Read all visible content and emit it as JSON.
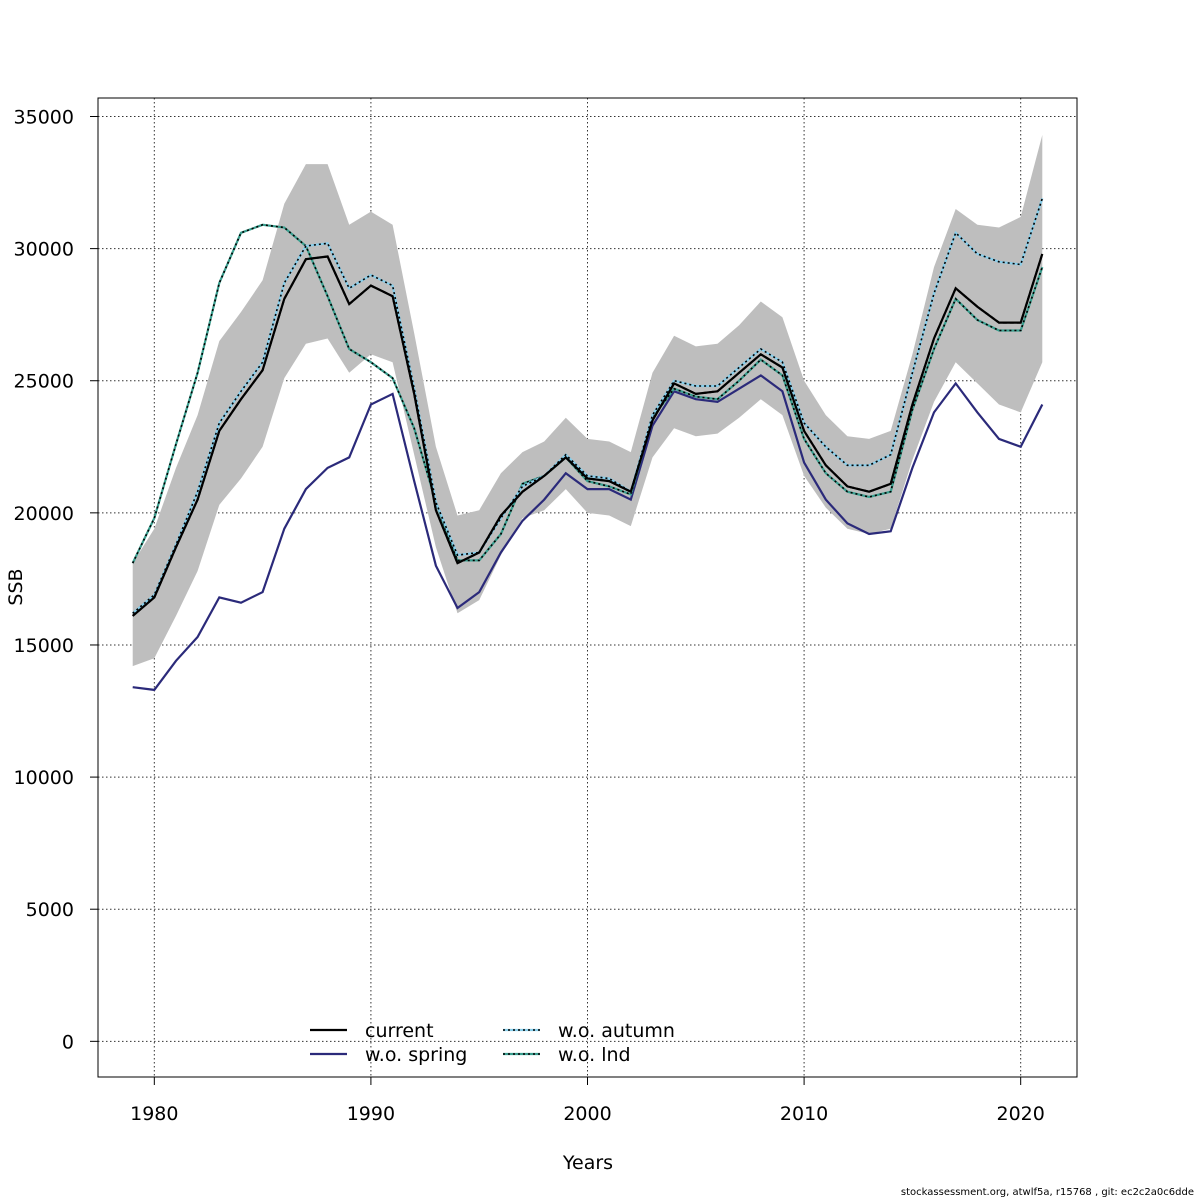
{
  "chart_data": {
    "type": "line",
    "title": "",
    "xlabel": "Years",
    "ylabel": "SSB",
    "xlim": [
      1977.4,
      2022.6
    ],
    "ylim": [
      -1350,
      35700
    ],
    "x_ticks": [
      1980,
      1990,
      2000,
      2010,
      2020
    ],
    "y_ticks": [
      0,
      5000,
      10000,
      15000,
      20000,
      25000,
      30000,
      35000
    ],
    "grid": true,
    "legend_position": "bottom-center",
    "x": [
      1979,
      1980,
      1981,
      1982,
      1983,
      1984,
      1985,
      1986,
      1987,
      1988,
      1989,
      1990,
      1991,
      1992,
      1993,
      1994,
      1995,
      1996,
      1997,
      1998,
      1999,
      2000,
      2001,
      2002,
      2003,
      2004,
      2005,
      2006,
      2007,
      2008,
      2009,
      2010,
      2011,
      2012,
      2013,
      2014,
      2015,
      2016,
      2017,
      2018,
      2019,
      2020,
      2021
    ],
    "confidence_band": {
      "color": "#bebebe",
      "lower": [
        14200,
        14500,
        16100,
        17800,
        20300,
        21300,
        22500,
        25100,
        26400,
        26600,
        25300,
        26000,
        25700,
        22200,
        18700,
        16200,
        16700,
        18400,
        19800,
        20100,
        20900,
        20000,
        19900,
        19500,
        22100,
        23200,
        22900,
        23000,
        23600,
        24300,
        23700,
        21400,
        20200,
        19400,
        19200,
        19400,
        22000,
        24200,
        25700,
        24900,
        24100,
        23800,
        25700
      ],
      "upper": [
        18100,
        19400,
        21700,
        23700,
        26500,
        27600,
        28800,
        31700,
        33200,
        33200,
        30900,
        31400,
        30900,
        26800,
        22500,
        19900,
        20100,
        21500,
        22300,
        22700,
        23600,
        22800,
        22700,
        22300,
        25300,
        26700,
        26300,
        26400,
        27100,
        28000,
        27400,
        25000,
        23700,
        22900,
        22800,
        23100,
        26000,
        29300,
        31500,
        30900,
        30800,
        31200,
        34300
      ]
    },
    "series": [
      {
        "name": "current",
        "color": "#000000",
        "dash": "solid",
        "values": [
          16100,
          16800,
          18700,
          20500,
          23100,
          24300,
          25400,
          28100,
          29600,
          29700,
          27900,
          28600,
          28200,
          24500,
          20100,
          18100,
          18500,
          19900,
          20800,
          21400,
          22100,
          21300,
          21200,
          20800,
          23500,
          24900,
          24500,
          24600,
          25300,
          26000,
          25500,
          23100,
          21800,
          21000,
          20800,
          21100,
          24100,
          26600,
          28500,
          27800,
          27200,
          27200,
          29800
        ]
      },
      {
        "name": "w.o. spring",
        "color": "#2b2a7a",
        "dash": "solid",
        "values": [
          13400,
          13300,
          14400,
          15300,
          16800,
          16600,
          17000,
          19400,
          20900,
          21700,
          22100,
          24100,
          24500,
          21200,
          18000,
          16400,
          17000,
          18500,
          19700,
          20500,
          21500,
          20900,
          20900,
          20500,
          23300,
          24600,
          24300,
          24200,
          24700,
          25200,
          24600,
          21900,
          20500,
          19600,
          19200,
          19300,
          21700,
          23800,
          24900,
          23800,
          22800,
          22500,
          24100
        ]
      },
      {
        "name": "w.o. autumn",
        "color": "#87ceeb",
        "dash": "dotted",
        "values": [
          16200,
          16900,
          18800,
          20800,
          23400,
          24600,
          25700,
          28700,
          30100,
          30200,
          28500,
          29000,
          28600,
          24700,
          20400,
          18400,
          18500,
          19800,
          21000,
          21400,
          22200,
          21400,
          21300,
          20800,
          23700,
          25000,
          24800,
          24800,
          25500,
          26200,
          25700,
          23400,
          22500,
          21800,
          21800,
          22200,
          25300,
          28300,
          30600,
          29800,
          29500,
          29400,
          31900
        ]
      },
      {
        "name": "w.o. lnd",
        "color": "#3a9f8f",
        "dash": "dotted",
        "values": [
          18100,
          19800,
          22600,
          25300,
          28700,
          30600,
          30900,
          30800,
          30100,
          28200,
          26200,
          25700,
          25100,
          23200,
          20400,
          18200,
          18200,
          19200,
          21100,
          21400,
          22100,
          21200,
          21000,
          20700,
          23600,
          24700,
          24400,
          24300,
          25000,
          25800,
          25200,
          22800,
          21500,
          20800,
          20600,
          20800,
          23900,
          26200,
          28100,
          27300,
          26900,
          26900,
          29300
        ]
      }
    ]
  },
  "footer": {
    "credit": "stockassessment.org, atwlf5a, r15768 , git: ec2c2a0c6dde"
  }
}
